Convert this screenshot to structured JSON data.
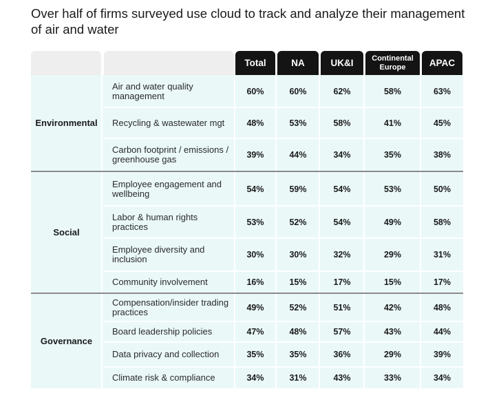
{
  "chart_data": {
    "type": "table",
    "title": "Over half of firms surveyed use cloud to track and analyze their management of air and water",
    "columns": [
      "Total",
      "NA",
      "UK&I",
      "Continental Europe",
      "APAC"
    ],
    "groups": [
      {
        "name": "Environmental",
        "rows": [
          {
            "label": "Air and water quality management",
            "values": [
              "60%",
              "60%",
              "62%",
              "58%",
              "63%"
            ]
          },
          {
            "label": "Recycling & wastewater mgt",
            "values": [
              "48%",
              "53%",
              "58%",
              "41%",
              "45%"
            ]
          },
          {
            "label": "Carbon footprint / emissions / greenhouse gas",
            "values": [
              "39%",
              "44%",
              "34%",
              "35%",
              "38%"
            ]
          }
        ]
      },
      {
        "name": "Social",
        "rows": [
          {
            "label": "Employee engagement and wellbeing",
            "values": [
              "54%",
              "59%",
              "54%",
              "53%",
              "50%"
            ]
          },
          {
            "label": "Labor & human rights practices",
            "values": [
              "53%",
              "52%",
              "54%",
              "49%",
              "58%"
            ]
          },
          {
            "label": "Employee diversity and inclusion",
            "values": [
              "30%",
              "30%",
              "32%",
              "29%",
              "31%"
            ]
          },
          {
            "label": "Community involvement",
            "values": [
              "16%",
              "15%",
              "17%",
              "15%",
              "17%"
            ]
          }
        ]
      },
      {
        "name": "Governance",
        "rows": [
          {
            "label": "Compensation/insider trading practices",
            "values": [
              "49%",
              "52%",
              "51%",
              "42%",
              "48%"
            ]
          },
          {
            "label": "Board leadership policies",
            "values": [
              "47%",
              "48%",
              "57%",
              "43%",
              "44%"
            ]
          },
          {
            "label": "Data privacy and collection",
            "values": [
              "35%",
              "35%",
              "36%",
              "29%",
              "39%"
            ]
          },
          {
            "label": "Climate risk & compliance",
            "values": [
              "34%",
              "31%",
              "43%",
              "33%",
              "34%"
            ]
          }
        ]
      }
    ]
  }
}
